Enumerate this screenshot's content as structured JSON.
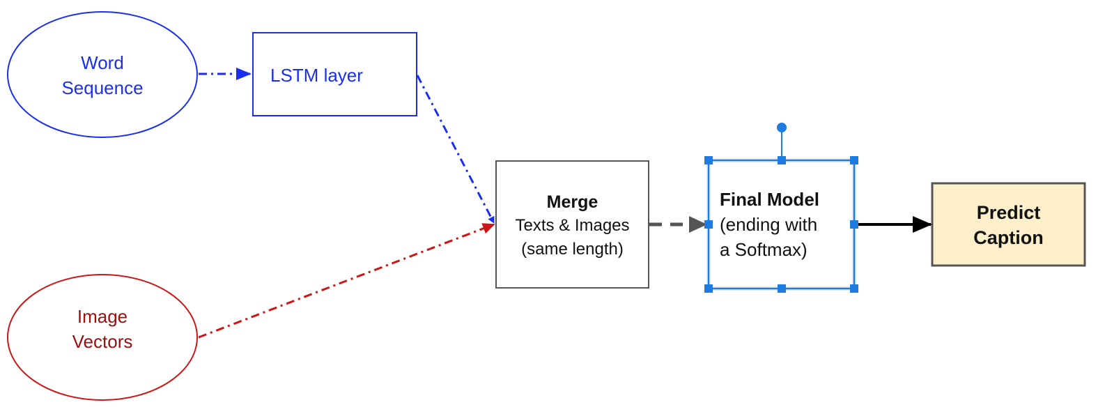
{
  "nodes": {
    "word_sequence": {
      "line1": "Word",
      "line2": "Sequence"
    },
    "lstm": {
      "label": "LSTM layer"
    },
    "image_vectors": {
      "line1": "Image",
      "line2": "Vectors"
    },
    "merge": {
      "title": "Merge",
      "line1": "Texts & Images",
      "line2": "(same length)"
    },
    "final_model": {
      "title": "Final Model",
      "line1": "(ending with",
      "line2": "a Softmax)"
    },
    "predict": {
      "line1": "Predict",
      "line2": "Caption"
    }
  },
  "colors": {
    "blue": "#1a2ef0",
    "red": "#cc1515",
    "dark_red_text": "#9b0f0f",
    "gray_arrow": "#555555",
    "selection": "#1e7be0",
    "predict_fill": "#fcefc9",
    "predict_stroke": "#555555"
  }
}
